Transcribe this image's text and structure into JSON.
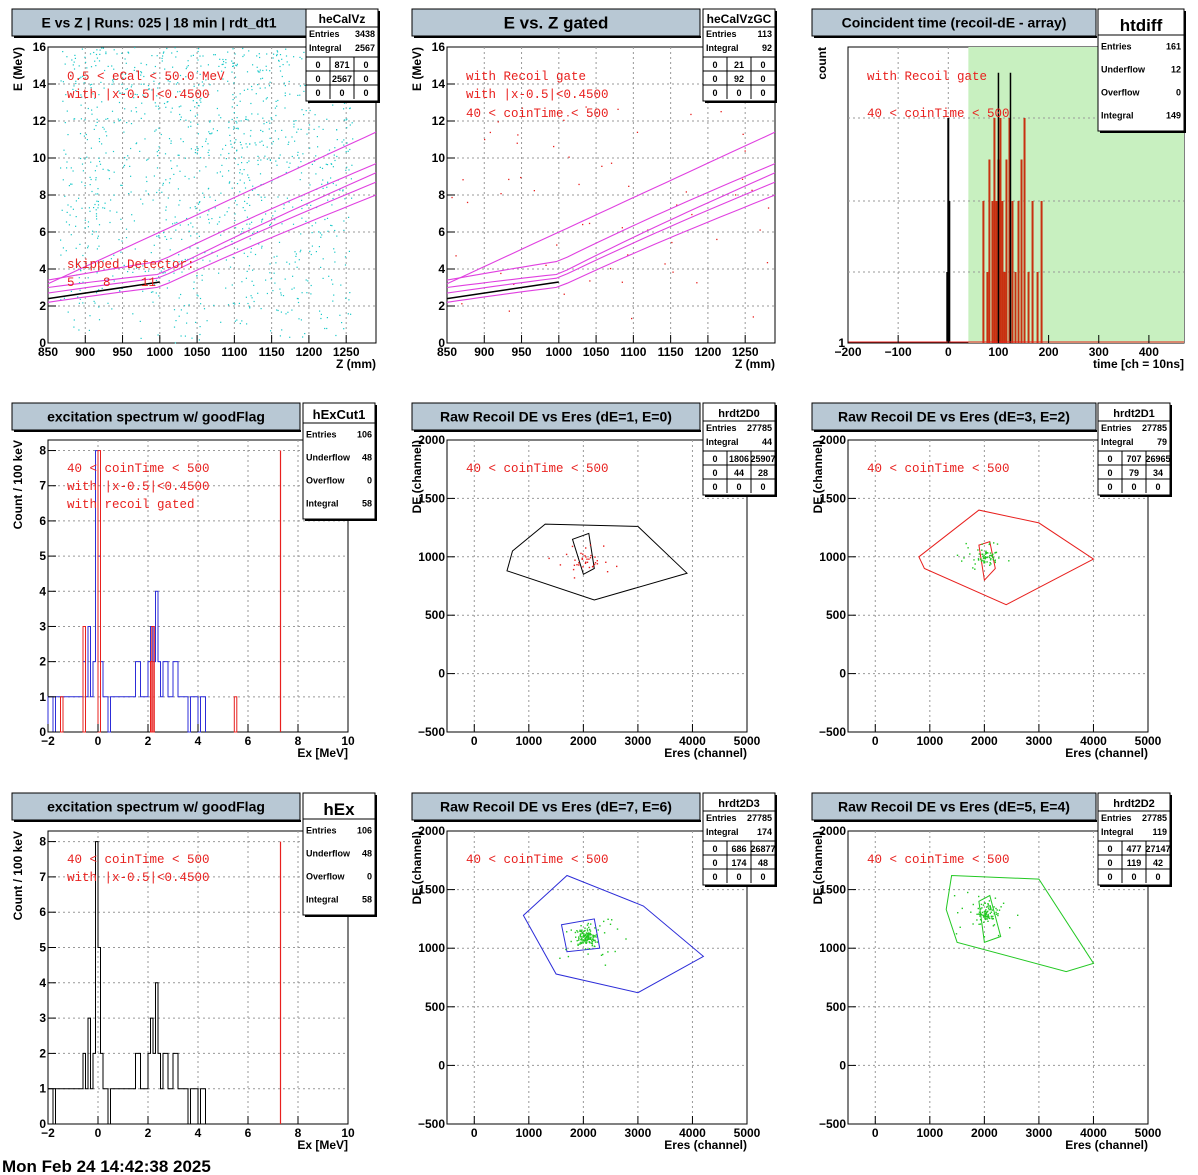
{
  "footer_date": "Mon Feb 24 14:42:38 2025",
  "colors": {
    "red": "#e8201e",
    "magenta": "#e040e0",
    "cyan": "#18c8c8",
    "blue": "#2c2cd8",
    "green": "#22c822",
    "black": "#000000",
    "gate_fill": "#c8f0c0",
    "title_bg": "#b8c8d4"
  },
  "panels": [
    {
      "title": "E vs Z | Runs: 025 | 18 min | rdt_dt1",
      "stats": {
        "name": "heCalVz",
        "rows": [
          [
            "Entries",
            "3438"
          ],
          [
            "Integral",
            "2567"
          ]
        ],
        "grid": [
          [
            "0",
            "871",
            "0"
          ],
          [
            "0",
            "2567",
            "0"
          ],
          [
            "0",
            "0",
            "0"
          ]
        ]
      },
      "annotations": [
        "0.5 < eCal < 50.0 MeV",
        "with |x-0.5|<0.4500"
      ],
      "skipped": {
        "label": "skipped Detector:",
        "values": [
          "5",
          "8",
          "11"
        ]
      },
      "chart_data": {
        "type": "scatter",
        "xlabel": "Z (mm)",
        "ylabel": "E (MeV)",
        "xlim": [
          850,
          1290
        ],
        "ylim": [
          0,
          16
        ],
        "xticks": [
          850,
          900,
          950,
          1000,
          1050,
          1100,
          1150,
          1200,
          1250
        ],
        "yticks": [
          0,
          2,
          4,
          6,
          8,
          10,
          12,
          14,
          16
        ],
        "point_color": "cyan",
        "note": "kinematic lines magenta, black segment 850-1000 mm"
      }
    },
    {
      "title": "E vs. Z gated",
      "stats": {
        "name": "heCalVzGC",
        "rows": [
          [
            "Entries",
            "113"
          ],
          [
            "Integral",
            "92"
          ]
        ],
        "grid": [
          [
            "0",
            "21",
            "0"
          ],
          [
            "0",
            "92",
            "0"
          ],
          [
            "0",
            "0",
            "0"
          ]
        ]
      },
      "annotations": [
        "with Recoil gate",
        "with |x-0.5|<0.4500",
        "40 < coinTime < 500"
      ],
      "chart_data": {
        "type": "scatter",
        "xlabel": "Z (mm)",
        "ylabel": "E (MeV)",
        "xlim": [
          850,
          1290
        ],
        "ylim": [
          0,
          16
        ],
        "xticks": [
          850,
          900,
          950,
          1000,
          1050,
          1100,
          1150,
          1200,
          1250
        ],
        "yticks": [
          0,
          2,
          4,
          6,
          8,
          10,
          12,
          14,
          16
        ],
        "point_color": "red"
      }
    },
    {
      "title": "Coincident time (recoil-dE - array)",
      "stats": {
        "name": "htdiff",
        "rows": [
          [
            "Entries",
            "161"
          ],
          [
            "Underflow",
            "12"
          ],
          [
            "Overflow",
            "0"
          ],
          [
            "Integral",
            "149"
          ]
        ]
      },
      "annotations": [
        "with Recoil gate",
        "40 < coinTime < 500"
      ],
      "chart_data": {
        "type": "bar",
        "xlabel": "time [ch = 10ns]",
        "ylabel": "count",
        "xlim": [
          -200,
          470
        ],
        "ylim_log": [
          1,
          18
        ],
        "xticks": [
          -200,
          -100,
          0,
          100,
          200,
          300,
          400
        ],
        "ytick_labels": [
          "1"
        ],
        "gate": [
          40,
          500
        ]
      }
    },
    {
      "title": "excitation spectrum w/ goodFlag",
      "stats": {
        "name": "hExCut1",
        "rows": [
          [
            "Entries",
            "106"
          ],
          [
            "Underflow",
            "48"
          ],
          [
            "Overflow",
            "0"
          ],
          [
            "Integral",
            "58"
          ]
        ]
      },
      "annotations": [
        "40 < coinTime < 500",
        "with |x-0.5|<0.4500",
        "with recoil gated"
      ],
      "chart_data": {
        "type": "bar",
        "xlabel": "Ex [MeV]",
        "ylabel": "Count / 100 keV",
        "xlim": [
          -2,
          10
        ],
        "ylim": [
          0,
          8.3
        ],
        "xticks": [
          -2,
          0,
          2,
          4,
          6,
          8,
          10
        ],
        "yticks": [
          0,
          1,
          2,
          3,
          4,
          5,
          6,
          7,
          8
        ]
      }
    },
    {
      "title": "Raw Recoil DE vs Eres (dE=1, E=0)",
      "stats": {
        "name": "hrdt2D0",
        "rows": [
          [
            "Entries",
            "27785"
          ],
          [
            "Integral",
            "44"
          ]
        ],
        "grid": [
          [
            "0",
            "1806",
            "25907"
          ],
          [
            "0",
            "44",
            "28"
          ],
          [
            "0",
            "0",
            "0"
          ]
        ]
      },
      "annotations": [
        "40 < coinTime < 500"
      ],
      "chart_data": {
        "type": "scatter",
        "xlabel": "Eres (channel)",
        "ylabel": "DE (channel)",
        "xlim": [
          -500,
          5000
        ],
        "ylim": [
          -500,
          2000
        ],
        "xticks": [
          0,
          1000,
          2000,
          3000,
          4000,
          5000
        ],
        "yticks": [
          -500,
          0,
          500,
          1000,
          1500,
          2000
        ],
        "point_color": "red",
        "cut_color": "black"
      }
    },
    {
      "title": "Raw Recoil DE vs Eres (dE=3, E=2)",
      "stats": {
        "name": "hrdt2D1",
        "rows": [
          [
            "Entries",
            "27785"
          ],
          [
            "Integral",
            "79"
          ]
        ],
        "grid": [
          [
            "0",
            "707",
            "26965"
          ],
          [
            "0",
            "79",
            "34"
          ],
          [
            "0",
            "0",
            "0"
          ]
        ]
      },
      "annotations": [
        "40 < coinTime < 500"
      ],
      "chart_data": {
        "type": "scatter",
        "xlabel": "Eres (channel)",
        "ylabel": "DE (channel)",
        "xlim": [
          -500,
          5000
        ],
        "ylim": [
          -500,
          2000
        ],
        "xticks": [
          0,
          1000,
          2000,
          3000,
          4000,
          5000
        ],
        "yticks": [
          -500,
          0,
          500,
          1000,
          1500,
          2000
        ],
        "point_color": "green",
        "cut_color": "red"
      }
    },
    {
      "title": "excitation spectrum w/ goodFlag",
      "stats": {
        "name": "hEx",
        "rows": [
          [
            "Entries",
            "106"
          ],
          [
            "Underflow",
            "48"
          ],
          [
            "Overflow",
            "0"
          ],
          [
            "Integral",
            "58"
          ]
        ]
      },
      "annotations": [
        "40 < coinTime < 500",
        "with |x-0.5|<0.4500"
      ],
      "chart_data": {
        "type": "bar",
        "xlabel": "Ex [MeV]",
        "ylabel": "Count / 100 keV",
        "xlim": [
          -2,
          10
        ],
        "ylim": [
          0,
          8.3
        ],
        "xticks": [
          -2,
          0,
          2,
          4,
          6,
          8,
          10
        ],
        "yticks": [
          0,
          1,
          2,
          3,
          4,
          5,
          6,
          7,
          8
        ]
      }
    },
    {
      "title": "Raw Recoil DE vs Eres (dE=7, E=6)",
      "stats": {
        "name": "hrdt2D3",
        "rows": [
          [
            "Entries",
            "27785"
          ],
          [
            "Integral",
            "174"
          ]
        ],
        "grid": [
          [
            "0",
            "686",
            "26877"
          ],
          [
            "0",
            "174",
            "48"
          ],
          [
            "0",
            "0",
            "0"
          ]
        ]
      },
      "annotations": [
        "40 < coinTime < 500"
      ],
      "chart_data": {
        "type": "scatter",
        "xlabel": "Eres (channel)",
        "ylabel": "DE (channel)",
        "xlim": [
          -500,
          5000
        ],
        "ylim": [
          -500,
          2000
        ],
        "xticks": [
          0,
          1000,
          2000,
          3000,
          4000,
          5000
        ],
        "yticks": [
          -500,
          0,
          500,
          1000,
          1500,
          2000
        ],
        "point_color": "green",
        "cut_color": "blue"
      }
    },
    {
      "title": "Raw Recoil DE vs Eres (dE=5, E=4)",
      "stats": {
        "name": "hrdt2D2",
        "rows": [
          [
            "Entries",
            "27785"
          ],
          [
            "Integral",
            "119"
          ]
        ],
        "grid": [
          [
            "0",
            "477",
            "27147"
          ],
          [
            "0",
            "119",
            "42"
          ],
          [
            "0",
            "0",
            "0"
          ]
        ]
      },
      "annotations": [
        "40 < coinTime < 500"
      ],
      "chart_data": {
        "type": "scatter",
        "xlabel": "Eres (channel)",
        "ylabel": "DE (channel)",
        "xlim": [
          -500,
          5000
        ],
        "ylim": [
          -500,
          2000
        ],
        "xticks": [
          0,
          1000,
          2000,
          3000,
          4000,
          5000
        ],
        "yticks": [
          -500,
          0,
          500,
          1000,
          1500,
          2000
        ],
        "point_color": "green",
        "cut_color": "green"
      }
    }
  ]
}
